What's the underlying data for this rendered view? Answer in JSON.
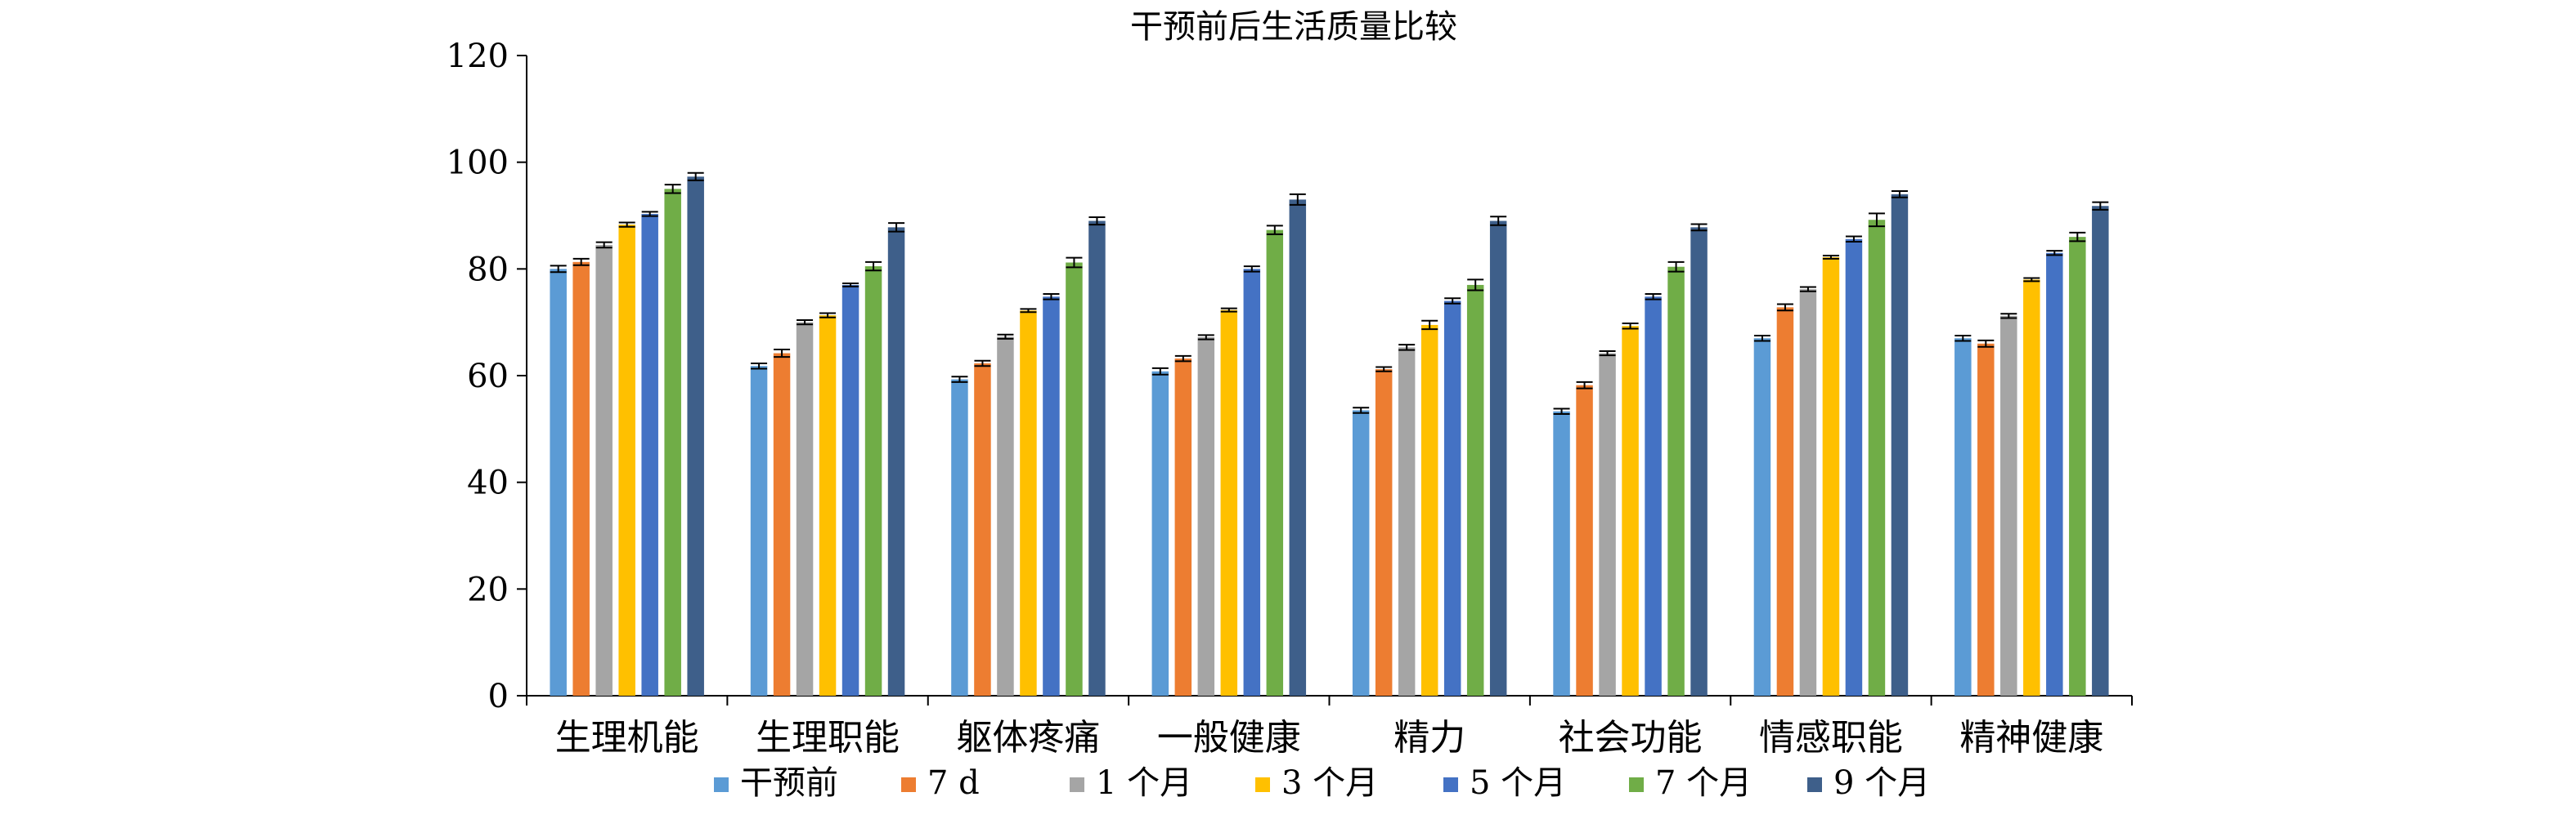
{
  "chart_data": {
    "type": "bar",
    "title": "干预前后生活质量比较",
    "xlabel": "",
    "ylabel": "",
    "ylim": [
      0,
      120
    ],
    "yticks": [
      0,
      20,
      40,
      60,
      80,
      100,
      120
    ],
    "legend_position": "bottom",
    "grid": false,
    "categories": [
      "生理机能",
      "生理职能",
      "躯体疼痛",
      "一般健康",
      "精力",
      "社会功能",
      "情感职能",
      "精神健康"
    ],
    "series": [
      {
        "name": "干预前",
        "color": "#5B9BD5",
        "values": [
          80,
          61.8,
          59.3,
          60.8,
          53.5,
          53.3,
          67,
          67
        ],
        "errors": [
          0.6,
          0.5,
          0.5,
          0.6,
          0.5,
          0.5,
          0.5,
          0.5
        ]
      },
      {
        "name": "7 d",
        "color": "#ED7D31",
        "values": [
          81.3,
          64.2,
          62.3,
          63.2,
          61.2,
          58.2,
          72.8,
          66
        ],
        "errors": [
          0.6,
          0.7,
          0.5,
          0.5,
          0.4,
          0.6,
          0.6,
          0.6
        ]
      },
      {
        "name": "1 个月",
        "color": "#A5A5A5",
        "values": [
          84.5,
          70,
          67.3,
          67.2,
          65.3,
          64.2,
          76.2,
          71.2
        ],
        "errors": [
          0.5,
          0.4,
          0.4,
          0.4,
          0.5,
          0.4,
          0.4,
          0.4
        ]
      },
      {
        "name": "3 个月",
        "color": "#FFC000",
        "values": [
          88.3,
          71.3,
          72.2,
          72.3,
          69.5,
          69.3,
          82.2,
          78
        ],
        "errors": [
          0.4,
          0.4,
          0.3,
          0.3,
          0.8,
          0.5,
          0.3,
          0.3
        ]
      },
      {
        "name": "5 个月",
        "color": "#4472C4",
        "values": [
          90.3,
          77,
          74.8,
          80,
          74,
          74.8,
          85.6,
          83
        ],
        "errors": [
          0.4,
          0.3,
          0.5,
          0.5,
          0.5,
          0.5,
          0.5,
          0.4
        ]
      },
      {
        "name": "7 个月",
        "color": "#70AD47",
        "values": [
          95,
          80.5,
          81.2,
          87.3,
          77,
          80.4,
          89.2,
          86
        ],
        "errors": [
          0.8,
          0.8,
          0.9,
          0.8,
          1.0,
          0.9,
          1.2,
          0.8
        ]
      },
      {
        "name": "9 个月",
        "color": "#3E5F8A",
        "values": [
          97.3,
          87.8,
          89,
          93,
          89,
          87.8,
          94,
          91.8
        ],
        "errors": [
          0.7,
          0.8,
          0.7,
          1.0,
          0.8,
          0.6,
          0.6,
          0.7
        ]
      }
    ]
  }
}
